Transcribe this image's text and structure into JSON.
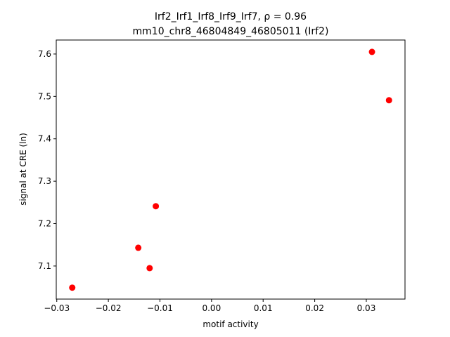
{
  "chart_data": {
    "type": "scatter",
    "title": [
      "Irf2_Irf1_Irf8_Irf9_Irf7, ρ = 0.96",
      "mm10_chr8_46804849_46805011 (Irf2)"
    ],
    "x_label": "motif activity",
    "y_label": "signal at CRE (ln)",
    "color": "#ff0000",
    "x": [
      -0.027,
      0.0311,
      0.0344,
      -0.0108,
      -0.0142,
      -0.012
    ],
    "values": [
      7.049,
      7.605,
      7.491,
      7.241,
      7.143,
      7.095
    ],
    "xlim": [
      -0.0301,
      0.0375
    ],
    "ylim": [
      7.022,
      7.633
    ],
    "xticks": [
      {
        "value": -0.03,
        "label": "−0.03"
      },
      {
        "value": -0.02,
        "label": "−0.02"
      },
      {
        "value": -0.01,
        "label": "−0.01"
      },
      {
        "value": 0,
        "label": "0.00"
      },
      0.01,
      0.02,
      0.03
    ],
    "yticks": [
      7.1,
      7.2,
      7.3,
      7.4,
      7.5,
      7.6
    ]
  }
}
